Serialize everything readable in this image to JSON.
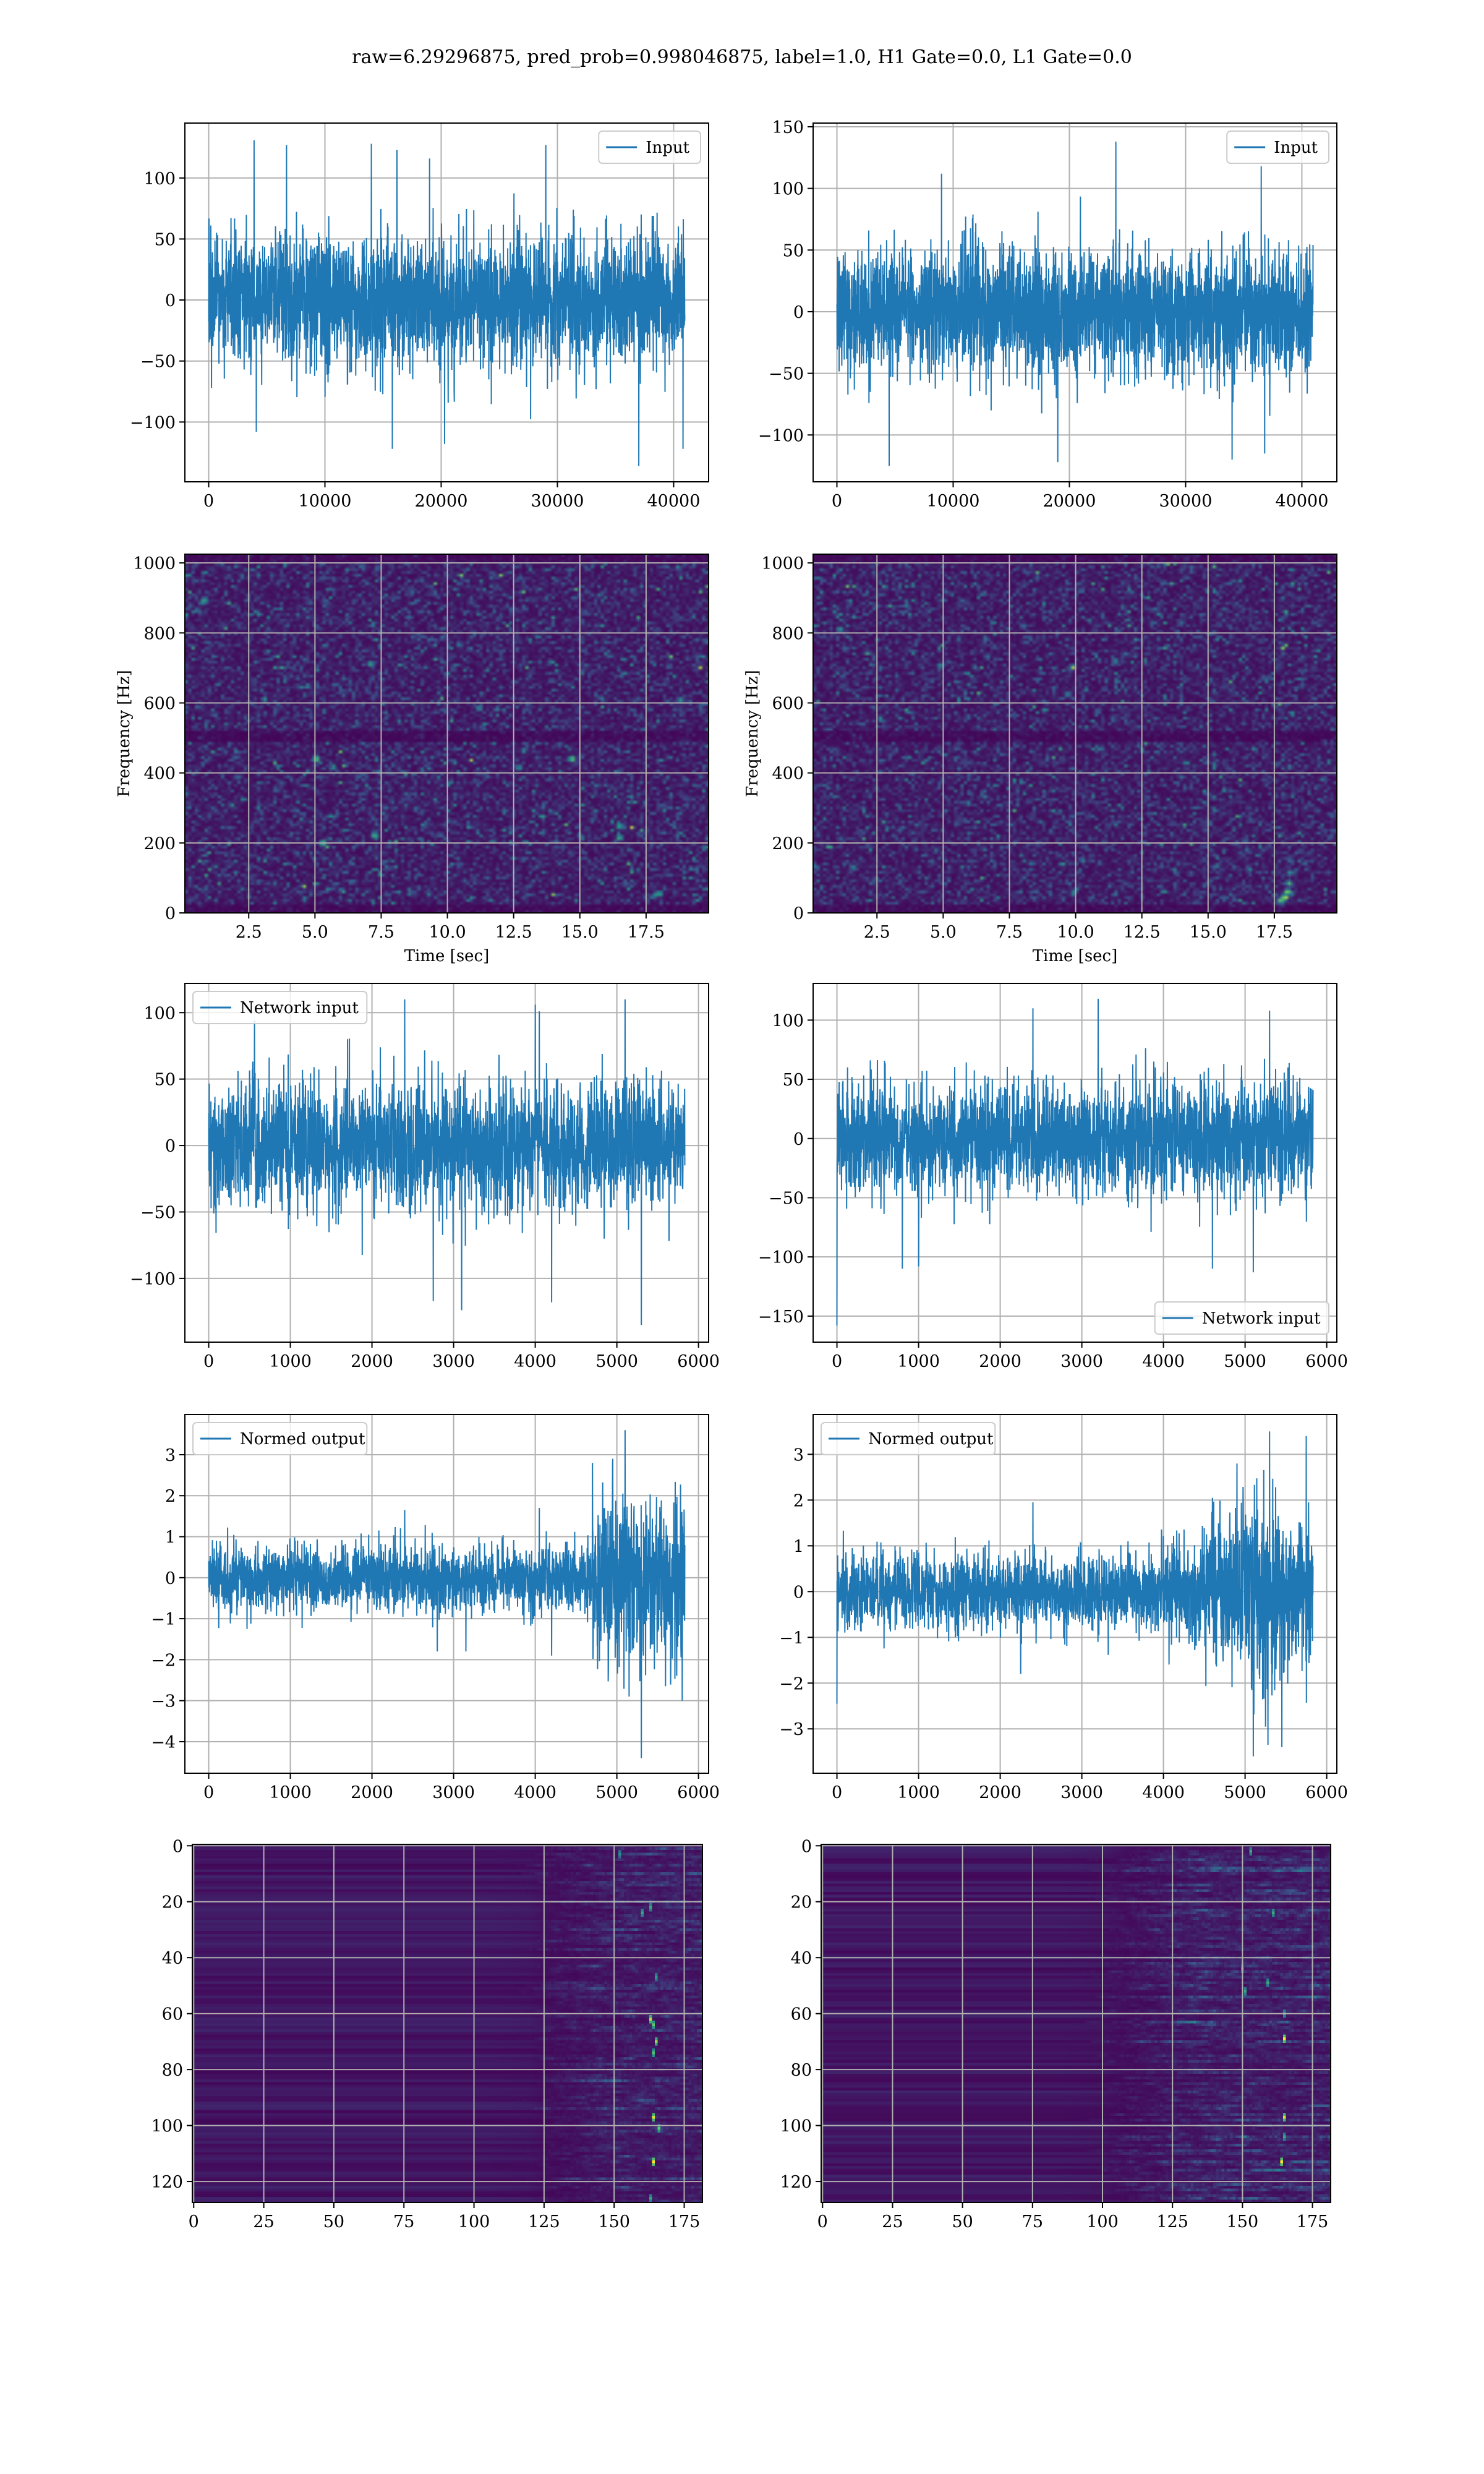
{
  "figure": {
    "suptitle": "raw=6.29296875, pred_prob=0.998046875, label=1.0, H1 Gate=0.0, L1 Gate=0.0"
  },
  "chart_data": [
    {
      "id": "h1-input",
      "type": "line",
      "color": "#1f77b4",
      "grid": true,
      "legend": {
        "label": "Input",
        "loc": "upper right"
      },
      "n_samples": 40960,
      "x_range": [
        0,
        40960
      ],
      "xlim": [
        -2048,
        43008
      ],
      "ylim": [
        -149,
        145
      ],
      "xticks": [
        0,
        10000,
        20000,
        30000,
        40000
      ],
      "xtick_labels": [
        "0",
        "10000",
        "20000",
        "30000",
        "40000"
      ],
      "yticks": [
        -100,
        -50,
        0,
        50,
        100
      ],
      "ytick_labels": [
        "−100",
        "−50",
        "0",
        "50",
        "100"
      ],
      "noise_sigma": [
        {
          "x_from": 0,
          "x_to": 40960,
          "sigma": 26
        }
      ],
      "extremes": [
        {
          "x": 3900,
          "y": 131
        },
        {
          "x": 6700,
          "y": 127
        },
        {
          "x": 14000,
          "y": 128
        },
        {
          "x": 16200,
          "y": 123
        },
        {
          "x": 29000,
          "y": 127
        },
        {
          "x": 19000,
          "y": 116
        },
        {
          "x": 37000,
          "y": -136
        },
        {
          "x": 15800,
          "y": -122
        },
        {
          "x": 20300,
          "y": -118
        },
        {
          "x": 40800,
          "y": -122
        },
        {
          "x": 4100,
          "y": -108
        }
      ]
    },
    {
      "id": "l1-input",
      "type": "line",
      "color": "#1f77b4",
      "grid": true,
      "legend": {
        "label": "Input",
        "loc": "upper right"
      },
      "n_samples": 40960,
      "x_range": [
        0,
        40960
      ],
      "xlim": [
        -2048,
        43008
      ],
      "ylim": [
        -138,
        153
      ],
      "xticks": [
        0,
        10000,
        20000,
        30000,
        40000
      ],
      "xtick_labels": [
        "0",
        "10000",
        "20000",
        "30000",
        "40000"
      ],
      "yticks": [
        -100,
        -50,
        0,
        50,
        100,
        150
      ],
      "ytick_labels": [
        "−100",
        "−50",
        "0",
        "50",
        "100",
        "150"
      ],
      "noise_sigma": [
        {
          "x_from": 0,
          "x_to": 40960,
          "sigma": 25
        }
      ],
      "extremes": [
        {
          "x": 24000,
          "y": 138
        },
        {
          "x": 36500,
          "y": 118
        },
        {
          "x": 9000,
          "y": 112
        },
        {
          "x": 4500,
          "y": -125
        },
        {
          "x": 34000,
          "y": -120
        },
        {
          "x": 19000,
          "y": -122
        },
        {
          "x": 36800,
          "y": -115
        }
      ]
    },
    {
      "id": "h1-spectrogram",
      "type": "heatmap",
      "colormap": "viridis",
      "grid": true,
      "xlabel": "Time [sec]",
      "ylabel": "Frequency [Hz]",
      "xlim": [
        0.09,
        19.86
      ],
      "ylim": [
        0,
        1025
      ],
      "time_bins": 160,
      "freq_bins": 128,
      "xticks": [
        2.5,
        5.0,
        7.5,
        10.0,
        12.5,
        15.0,
        17.5
      ],
      "xtick_labels": [
        "2.5",
        "5.0",
        "7.5",
        "10.0",
        "12.5",
        "15.0",
        "17.5"
      ],
      "yticks": [
        0,
        200,
        400,
        600,
        800,
        1000
      ],
      "ytick_labels": [
        "0",
        "200",
        "400",
        "600",
        "800",
        "1000"
      ],
      "dark_bands_hz": [
        [
          0,
          22
        ],
        [
          492,
          522
        ],
        [
          1000,
          1025
        ]
      ],
      "bright_points": [
        {
          "t": 5.05,
          "f": 440,
          "v": 0.85
        },
        {
          "t": 14.7,
          "f": 440,
          "v": 0.85
        },
        {
          "t": 5.3,
          "f": 200,
          "v": 0.8
        },
        {
          "t": 7.25,
          "f": 222,
          "v": 0.75
        },
        {
          "t": 16.5,
          "f": 248,
          "v": 0.7
        },
        {
          "t": 16.5,
          "f": 215,
          "v": 0.7
        },
        {
          "t": 0.8,
          "f": 890,
          "v": 0.65
        },
        {
          "t": 7.1,
          "f": 712,
          "v": 0.65
        },
        {
          "t": 18.8,
          "f": 608,
          "v": 0.6
        },
        {
          "t": 18.0,
          "f": 55,
          "v": 0.7
        },
        {
          "t": 11.2,
          "f": 585,
          "v": 0.55
        },
        {
          "t": 12.7,
          "f": 415,
          "v": 0.55
        }
      ]
    },
    {
      "id": "l1-spectrogram",
      "type": "heatmap",
      "colormap": "viridis",
      "grid": true,
      "xlabel": "Time [sec]",
      "ylabel": "Frequency [Hz]",
      "xlim": [
        0.09,
        19.86
      ],
      "ylim": [
        0,
        1025
      ],
      "time_bins": 160,
      "freq_bins": 128,
      "xticks": [
        2.5,
        5.0,
        7.5,
        10.0,
        12.5,
        15.0,
        17.5
      ],
      "xtick_labels": [
        "2.5",
        "5.0",
        "7.5",
        "10.0",
        "12.5",
        "15.0",
        "17.5"
      ],
      "yticks": [
        0,
        200,
        400,
        600,
        800,
        1000
      ],
      "ytick_labels": [
        "0",
        "200",
        "400",
        "600",
        "800",
        "1000"
      ],
      "dark_bands_hz": [
        [
          0,
          22
        ],
        [
          492,
          522
        ],
        [
          1000,
          1025
        ]
      ],
      "bright_points": [
        {
          "t": 17.75,
          "f": 35,
          "v": 0.85
        },
        {
          "t": 17.9,
          "f": 45,
          "v": 1.0
        },
        {
          "t": 18.0,
          "f": 60,
          "v": 0.9
        },
        {
          "t": 18.05,
          "f": 85,
          "v": 0.7
        },
        {
          "t": 18.1,
          "f": 115,
          "v": 0.55
        },
        {
          "t": 18.1,
          "f": 150,
          "v": 0.4
        },
        {
          "t": 1.1,
          "f": 810,
          "v": 0.6
        },
        {
          "t": 11.5,
          "f": 720,
          "v": 0.5
        },
        {
          "t": 1.6,
          "f": 130,
          "v": 0.5
        },
        {
          "t": 9.7,
          "f": 625,
          "v": 0.5
        }
      ]
    },
    {
      "id": "h1-network-input",
      "type": "line",
      "color": "#1f77b4",
      "grid": true,
      "legend": {
        "label": "Network input",
        "loc": "upper left"
      },
      "n_samples": 5832,
      "x_range": [
        0,
        5832
      ],
      "xlim": [
        -292,
        6124
      ],
      "ylim": [
        -148,
        122
      ],
      "xticks": [
        0,
        1000,
        2000,
        3000,
        4000,
        5000,
        6000
      ],
      "xtick_labels": [
        "0",
        "1000",
        "2000",
        "3000",
        "4000",
        "5000",
        "6000"
      ],
      "yticks": [
        -100,
        -50,
        0,
        50,
        100
      ],
      "ytick_labels": [
        "−100",
        "−50",
        "0",
        "50",
        "100"
      ],
      "noise_sigma": [
        {
          "x_from": 0,
          "x_to": 5832,
          "sigma": 24
        }
      ],
      "extremes": [
        {
          "x": 2400,
          "y": 110
        },
        {
          "x": 5100,
          "y": 110
        },
        {
          "x": 4000,
          "y": 106
        },
        {
          "x": 5300,
          "y": 106
        },
        {
          "x": 4050,
          "y": 101
        },
        {
          "x": 560,
          "y": 94
        },
        {
          "x": 2750,
          "y": -117
        },
        {
          "x": 3100,
          "y": -124
        },
        {
          "x": 4200,
          "y": -118
        },
        {
          "x": 5300,
          "y": -135
        }
      ]
    },
    {
      "id": "l1-network-input",
      "type": "line",
      "color": "#1f77b4",
      "grid": true,
      "legend": {
        "label": "Network input",
        "loc": "lower right"
      },
      "n_samples": 5832,
      "x_range": [
        0,
        5832
      ],
      "xlim": [
        -292,
        6124
      ],
      "ylim": [
        -172,
        131
      ],
      "xticks": [
        0,
        1000,
        2000,
        3000,
        4000,
        5000,
        6000
      ],
      "xtick_labels": [
        "0",
        "1000",
        "2000",
        "3000",
        "4000",
        "5000",
        "6000"
      ],
      "yticks": [
        -150,
        -100,
        -50,
        0,
        50,
        100
      ],
      "ytick_labels": [
        "−150",
        "−100",
        "−50",
        "0",
        "50",
        "100"
      ],
      "noise_sigma": [
        {
          "x_from": 0,
          "x_to": 5832,
          "sigma": 24
        }
      ],
      "extremes": [
        {
          "x": 0,
          "y": -158
        },
        {
          "x": 3200,
          "y": 118
        },
        {
          "x": 2400,
          "y": 110
        },
        {
          "x": 4600,
          "y": 110
        },
        {
          "x": 5300,
          "y": 108
        },
        {
          "x": 5100,
          "y": -113
        },
        {
          "x": 4600,
          "y": -110
        },
        {
          "x": 800,
          "y": -110
        },
        {
          "x": 1000,
          "y": -108
        }
      ]
    },
    {
      "id": "h1-normed-output",
      "type": "line",
      "color": "#1f77b4",
      "grid": true,
      "legend": {
        "label": "Normed output",
        "loc": "upper left"
      },
      "n_samples": 5832,
      "x_range": [
        0,
        5832
      ],
      "xlim": [
        -292,
        6124
      ],
      "ylim": [
        -4.77,
        3.98
      ],
      "xticks": [
        0,
        1000,
        2000,
        3000,
        4000,
        5000,
        6000
      ],
      "xtick_labels": [
        "0",
        "1000",
        "2000",
        "3000",
        "4000",
        "5000",
        "6000"
      ],
      "yticks": [
        -4,
        -3,
        -2,
        -1,
        0,
        1,
        2,
        3
      ],
      "ytick_labels": [
        "−4",
        "−3",
        "−2",
        "−1",
        "0",
        "1",
        "2",
        "3"
      ],
      "noise_sigma": [
        {
          "x_from": 0,
          "x_to": 4700,
          "sigma": 0.4
        },
        {
          "x_from": 4700,
          "x_to": 5832,
          "sigma": 0.95
        }
      ],
      "extremes": [
        {
          "x": 5100,
          "y": 3.6
        },
        {
          "x": 5300,
          "y": 3.4
        },
        {
          "x": 4950,
          "y": 2.9
        },
        {
          "x": 4700,
          "y": 2.8
        },
        {
          "x": 5300,
          "y": -4.4
        },
        {
          "x": 5150,
          "y": -2.9
        },
        {
          "x": 5800,
          "y": -3.0
        },
        {
          "x": 2400,
          "y": 1.65
        },
        {
          "x": 4050,
          "y": 1.7
        },
        {
          "x": 2800,
          "y": -1.8
        },
        {
          "x": 4200,
          "y": -1.9
        },
        {
          "x": 3150,
          "y": -1.8
        }
      ]
    },
    {
      "id": "l1-normed-output",
      "type": "line",
      "color": "#1f77b4",
      "grid": true,
      "legend": {
        "label": "Normed output",
        "loc": "upper left"
      },
      "n_samples": 5832,
      "x_range": [
        0,
        5832
      ],
      "xlim": [
        -292,
        6124
      ],
      "ylim": [
        -3.97,
        3.87
      ],
      "xticks": [
        0,
        1000,
        2000,
        3000,
        4000,
        5000,
        6000
      ],
      "xtick_labels": [
        "0",
        "1000",
        "2000",
        "3000",
        "4000",
        "5000",
        "6000"
      ],
      "yticks": [
        -3,
        -2,
        -1,
        0,
        1,
        2,
        3
      ],
      "ytick_labels": [
        "−3",
        "−2",
        "−1",
        "0",
        "1",
        "2",
        "3"
      ],
      "noise_sigma": [
        {
          "x_from": 0,
          "x_to": 4000,
          "sigma": 0.42
        },
        {
          "x_from": 4000,
          "x_to": 4600,
          "sigma": 0.55
        },
        {
          "x_from": 4600,
          "x_to": 4900,
          "sigma": 0.8
        },
        {
          "x_from": 4900,
          "x_to": 5400,
          "sigma": 1.0
        },
        {
          "x_from": 5400,
          "x_to": 5832,
          "sigma": 0.8
        }
      ],
      "extremes": [
        {
          "x": 5300,
          "y": 3.5
        },
        {
          "x": 5750,
          "y": 3.4
        },
        {
          "x": 4900,
          "y": 2.8
        },
        {
          "x": 5100,
          "y": -3.6
        },
        {
          "x": 5280,
          "y": -3.35
        },
        {
          "x": 5450,
          "y": -3.4
        },
        {
          "x": 0,
          "y": -2.45
        },
        {
          "x": 2400,
          "y": 1.95
        },
        {
          "x": 2250,
          "y": -1.8
        },
        {
          "x": 4600,
          "y": 2.05
        }
      ]
    },
    {
      "id": "h1-feature-map",
      "type": "heatmap",
      "colormap": "viridis",
      "grid": true,
      "rows": 128,
      "cols": 182,
      "xlim": [
        -0.5,
        181.5
      ],
      "ylim": [
        127.5,
        -0.5
      ],
      "activity_onset_col": 120,
      "xticks": [
        0,
        25,
        50,
        75,
        100,
        125,
        150,
        175
      ],
      "xtick_labels": [
        "0",
        "25",
        "50",
        "75",
        "100",
        "125",
        "150",
        "175"
      ],
      "yticks": [
        0,
        20,
        40,
        60,
        80,
        100,
        120
      ],
      "ytick_labels": [
        "0",
        "20",
        "40",
        "60",
        "80",
        "100",
        "120"
      ],
      "bright_points": [
        {
          "row": 62,
          "col": 163,
          "v": 0.9
        },
        {
          "row": 64,
          "col": 164,
          "v": 0.75
        },
        {
          "row": 70,
          "col": 165,
          "v": 0.85
        },
        {
          "row": 74,
          "col": 164,
          "v": 0.7
        },
        {
          "row": 97,
          "col": 164,
          "v": 0.95
        },
        {
          "row": 101,
          "col": 166,
          "v": 0.75
        },
        {
          "row": 113,
          "col": 164,
          "v": 1.0
        },
        {
          "row": 24,
          "col": 160,
          "v": 0.6
        },
        {
          "row": 22,
          "col": 163,
          "v": 0.6
        },
        {
          "row": 126,
          "col": 163,
          "v": 0.6
        },
        {
          "row": 3,
          "col": 152,
          "v": 0.5
        },
        {
          "row": 47,
          "col": 165,
          "v": 0.55
        }
      ]
    },
    {
      "id": "l1-feature-map",
      "type": "heatmap",
      "colormap": "viridis",
      "grid": true,
      "rows": 128,
      "cols": 182,
      "xlim": [
        -0.5,
        181.5
      ],
      "ylim": [
        127.5,
        -0.5
      ],
      "activity_onset_col": 100,
      "xticks": [
        0,
        25,
        50,
        75,
        100,
        125,
        150,
        175
      ],
      "xtick_labels": [
        "0",
        "25",
        "50",
        "75",
        "100",
        "125",
        "150",
        "175"
      ],
      "yticks": [
        0,
        20,
        40,
        60,
        80,
        100,
        120
      ],
      "ytick_labels": [
        "0",
        "20",
        "40",
        "60",
        "80",
        "100",
        "120"
      ],
      "bright_points": [
        {
          "row": 69,
          "col": 165,
          "v": 1.0
        },
        {
          "row": 97,
          "col": 165,
          "v": 0.95
        },
        {
          "row": 113,
          "col": 164,
          "v": 1.0
        },
        {
          "row": 24,
          "col": 161,
          "v": 0.6
        },
        {
          "row": 2,
          "col": 153,
          "v": 0.6
        },
        {
          "row": 60,
          "col": 165,
          "v": 0.6
        },
        {
          "row": 52,
          "col": 151,
          "v": 0.6
        },
        {
          "row": 44,
          "col": 150,
          "v": 0.55
        },
        {
          "row": 49,
          "col": 159,
          "v": 0.6
        },
        {
          "row": 104,
          "col": 165,
          "v": 0.6
        }
      ]
    }
  ]
}
